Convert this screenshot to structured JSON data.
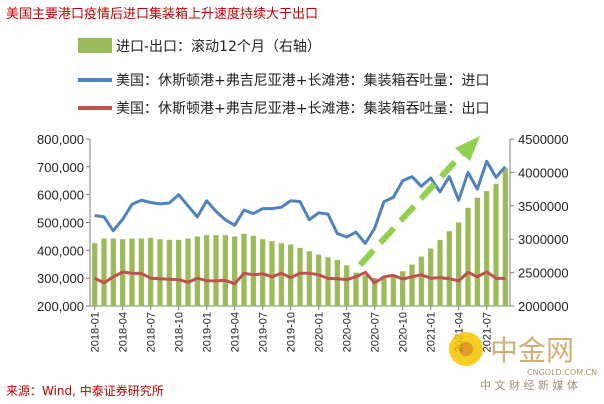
{
  "title": "美国主要港口疫情后进口集装箱上升速度持续大于出口",
  "source": "来源：Wind, 中泰证券研究所",
  "watermark": {
    "name": "中金网",
    "url": "CNGOLD.COM.CN",
    "slogan": "中 文 财 经 新 媒 体"
  },
  "colors": {
    "bars": "#9bbb59",
    "import_line": "#4f81bd",
    "export_line": "#c0504d",
    "arrow": "#92d050",
    "title": "#c00000"
  },
  "chart_data": {
    "type": "bar+line",
    "title": "美国主要港口疫情后进口集装箱上升速度持续大于出口",
    "legend": [
      "进口-出口：滚动12个月（右轴）",
      "美国：休斯顿港+弗吉尼亚港+长滩港：集装箱吞吐量：进口",
      "美国：休斯顿港+弗吉尼亚港+长滩港：集装箱吞吐量：出口"
    ],
    "left_axis": {
      "min": 200000,
      "max": 800000,
      "ticks": [
        "200,000",
        "300,000",
        "400,000",
        "500,000",
        "600,000",
        "700,000",
        "800,000"
      ]
    },
    "right_axis": {
      "min": 2000000,
      "max": 4500000,
      "ticks": [
        "2000000",
        "2500000",
        "3000000",
        "3500000",
        "4000000",
        "4500000"
      ]
    },
    "x_tick_labels": [
      "2018-01",
      "2018-04",
      "2018-07",
      "2018-10",
      "2019-01",
      "2019-04",
      "2019-07",
      "2019-10",
      "2020-01",
      "2020-04",
      "2020-07",
      "2020-10",
      "2021-01",
      "2021-04",
      "2021-07"
    ],
    "months": [
      "2018-01",
      "2018-02",
      "2018-03",
      "2018-04",
      "2018-05",
      "2018-06",
      "2018-07",
      "2018-08",
      "2018-09",
      "2018-10",
      "2018-11",
      "2018-12",
      "2019-01",
      "2019-02",
      "2019-03",
      "2019-04",
      "2019-05",
      "2019-06",
      "2019-07",
      "2019-08",
      "2019-09",
      "2019-10",
      "2019-11",
      "2019-12",
      "2020-01",
      "2020-02",
      "2020-03",
      "2020-04",
      "2020-05",
      "2020-06",
      "2020-07",
      "2020-08",
      "2020-09",
      "2020-10",
      "2020-11",
      "2020-12",
      "2021-01",
      "2021-02",
      "2021-03",
      "2021-04",
      "2021-05",
      "2021-06",
      "2021-07",
      "2021-08",
      "2021-09"
    ],
    "series": [
      {
        "name": "进口-出口：滚动12个月（右轴）",
        "type": "bar",
        "axis": "right",
        "values": [
          2940000,
          3010000,
          3010000,
          3000000,
          3010000,
          3010000,
          3020000,
          3000000,
          2990000,
          2990000,
          3010000,
          3040000,
          3060000,
          3060000,
          3060000,
          3040000,
          3080000,
          3050000,
          3000000,
          2970000,
          2940000,
          2920000,
          2870000,
          2820000,
          2770000,
          2730000,
          2690000,
          2610000,
          2500000,
          2460000,
          2420000,
          2440000,
          2470000,
          2520000,
          2620000,
          2740000,
          2860000,
          2990000,
          3120000,
          3250000,
          3470000,
          3620000,
          3720000,
          3830000,
          4060000
        ]
      },
      {
        "name": "美国：休斯顿港+弗吉尼亚港+长滩港：集装箱吞吐量：进口",
        "type": "line",
        "axis": "left",
        "values": [
          525000,
          520000,
          470000,
          512000,
          565000,
          580000,
          572000,
          567000,
          570000,
          600000,
          560000,
          520000,
          578000,
          540000,
          510000,
          490000,
          545000,
          532000,
          550000,
          550000,
          555000,
          578000,
          575000,
          510000,
          535000,
          530000,
          460000,
          448000,
          465000,
          425000,
          480000,
          575000,
          590000,
          650000,
          665000,
          630000,
          660000,
          610000,
          665000,
          580000,
          680000,
          620000,
          720000,
          662000,
          700000
        ]
      },
      {
        "name": "美国：休斯顿港+弗吉尼亚港+长滩港：集装箱吞吐量：出口",
        "type": "line",
        "axis": "left",
        "values": [
          300000,
          283000,
          305000,
          322000,
          318000,
          317000,
          300000,
          298000,
          296000,
          295000,
          285000,
          300000,
          291000,
          290000,
          292000,
          280000,
          318000,
          312000,
          316000,
          305000,
          318000,
          302000,
          318000,
          318000,
          312000,
          299000,
          298000,
          295000,
          305000,
          321000,
          283000,
          305000,
          310000,
          297000,
          305000,
          312000,
          300000,
          302000,
          298000,
          290000,
          321000,
          305000,
          323000,
          299000,
          299000
        ]
      }
    ]
  }
}
